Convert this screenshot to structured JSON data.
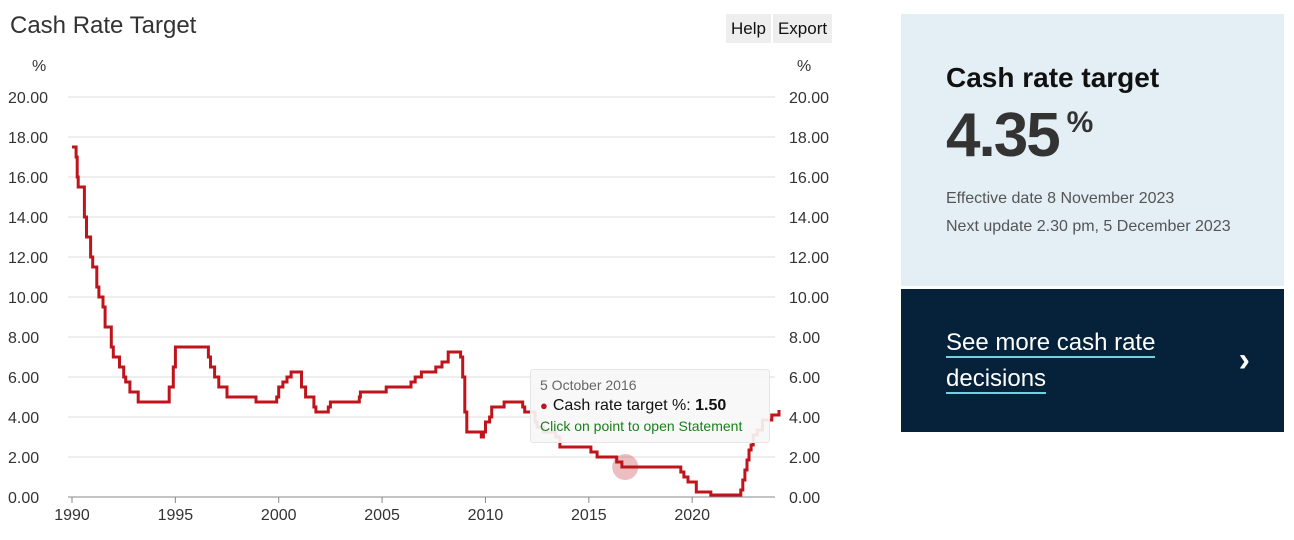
{
  "header": {
    "title": "Cash Rate Target",
    "help_label": "Help",
    "export_label": "Export"
  },
  "colors": {
    "series": "#c0141c",
    "card_background": "#e3eef5",
    "cta_background": "#05223a",
    "cta_underline": "#6fd3e0"
  },
  "chart_data": {
    "type": "line",
    "title": "Cash Rate Target",
    "ylabel": "%",
    "ylabel_right": "%",
    "ylim": [
      0,
      20
    ],
    "xlim": [
      1990,
      2024.2
    ],
    "yticks": [
      "0.00",
      "2.00",
      "4.00",
      "6.00",
      "8.00",
      "10.00",
      "12.00",
      "14.00",
      "16.00",
      "18.00",
      "20.00"
    ],
    "xticks": [
      "1990",
      "1995",
      "2000",
      "2005",
      "2010",
      "2015",
      "2020"
    ],
    "grid": true,
    "step": true,
    "series": [
      {
        "name": "Cash rate target",
        "x": [
          1990.0,
          1990.2,
          1990.25,
          1990.3,
          1990.6,
          1990.7,
          1990.9,
          1991.0,
          1991.2,
          1991.3,
          1991.5,
          1991.6,
          1991.9,
          1992.0,
          1992.3,
          1992.5,
          1992.6,
          1992.8,
          1993.2,
          1993.6,
          1994.7,
          1994.9,
          1995.0,
          1996.6,
          1996.7,
          1996.9,
          1997.1,
          1997.5,
          1997.9,
          1998.9,
          1999.9,
          2000.0,
          2000.2,
          2000.4,
          2000.6,
          2001.1,
          2001.3,
          2001.7,
          2001.8,
          2002.4,
          2002.5,
          2003.9,
          2003.95,
          2005.2,
          2006.4,
          2006.6,
          2006.9,
          2007.6,
          2007.9,
          2008.2,
          2008.8,
          2008.9,
          2009.0,
          2009.1,
          2009.8,
          2009.9,
          2010.0,
          2010.2,
          2010.3,
          2010.9,
          2011.8,
          2011.9,
          2012.4,
          2012.5,
          2012.8,
          2013.4,
          2013.6,
          2015.1,
          2015.4,
          2016.35,
          2016.6,
          2019.45,
          2019.6,
          2019.8,
          2020.2,
          2020.9,
          2022.35,
          2022.45,
          2022.55,
          2022.65,
          2022.75,
          2022.85,
          2022.95,
          2023.15,
          2023.4,
          2023.85,
          2024.2
        ],
        "y": [
          17.5,
          17.0,
          16.0,
          15.5,
          14.0,
          13.0,
          12.0,
          11.5,
          10.5,
          10.0,
          9.5,
          8.5,
          7.5,
          7.0,
          6.5,
          6.0,
          5.75,
          5.25,
          4.75,
          4.75,
          5.5,
          6.5,
          7.5,
          7.0,
          6.5,
          6.0,
          5.5,
          5.0,
          5.0,
          4.75,
          5.0,
          5.5,
          5.75,
          6.0,
          6.25,
          5.5,
          5.0,
          4.5,
          4.25,
          4.5,
          4.75,
          5.0,
          5.25,
          5.5,
          5.75,
          6.0,
          6.25,
          6.5,
          6.75,
          7.25,
          7.0,
          6.0,
          4.25,
          3.25,
          3.0,
          3.25,
          3.75,
          4.0,
          4.5,
          4.75,
          4.5,
          4.25,
          3.75,
          3.5,
          3.25,
          3.0,
          2.5,
          2.25,
          2.0,
          1.75,
          1.5,
          1.25,
          1.0,
          0.75,
          0.25,
          0.1,
          0.35,
          0.85,
          1.35,
          1.85,
          2.35,
          2.6,
          3.1,
          3.35,
          3.85,
          4.1,
          4.35
        ]
      }
    ],
    "tooltip": {
      "date": "5 October 2016",
      "series_label": "Cash rate target %:",
      "value": "1.50",
      "hint": "Click on point to open Statement",
      "x": 2016.76,
      "y": 1.5
    }
  },
  "info": {
    "title": "Cash rate target",
    "value": "4.35",
    "unit": "%",
    "effective": "Effective date 8 November 2023",
    "next_update": "Next update 2.30 pm, 5 December 2023"
  },
  "cta": {
    "label": "See more cash rate decisions",
    "arrow": "›"
  }
}
